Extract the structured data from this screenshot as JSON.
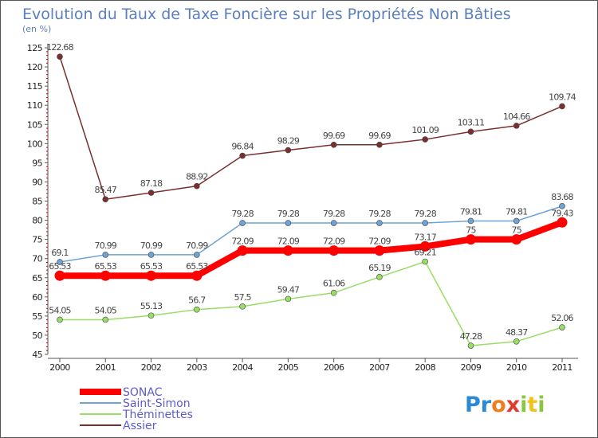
{
  "chart_data": {
    "type": "line",
    "title": "Evolution du Taux de Taxe Foncière sur les Propriétés Non Bâties",
    "subtitle": "(en %)",
    "xlabel": "",
    "ylabel": "(en %)",
    "categories": [
      "2000",
      "2001",
      "2002",
      "2003",
      "2004",
      "2005",
      "2006",
      "2007",
      "2008",
      "2009",
      "2010",
      "2011"
    ],
    "ylim": [
      45,
      125
    ],
    "yticks": [
      45,
      50,
      55,
      60,
      65,
      70,
      75,
      80,
      85,
      90,
      95,
      100,
      105,
      110,
      115,
      120,
      125
    ],
    "grid": false,
    "legend_position": "bottom-left",
    "series": [
      {
        "name": "SONAC",
        "color": "#ff0000",
        "values": [
          65.53,
          65.53,
          65.53,
          65.53,
          72.09,
          72.09,
          72.09,
          72.09,
          73.17,
          75,
          75,
          79.43
        ],
        "labels": [
          "65.53",
          "65.53",
          "65.53",
          "65.53",
          "72.09",
          "72.09",
          "72.09",
          "72.09",
          "73.17",
          "75",
          "75",
          "79.43"
        ]
      },
      {
        "name": "Saint-Simon",
        "color": "#6fa3d6",
        "values": [
          69.1,
          70.99,
          70.99,
          70.99,
          79.28,
          79.28,
          79.28,
          79.28,
          79.28,
          79.81,
          79.81,
          83.68
        ],
        "labels": [
          "69.1",
          "70.99",
          "70.99",
          "70.99",
          "79.28",
          "79.28",
          "79.28",
          "79.28",
          "79.28",
          "79.81",
          "79.81",
          "83.68"
        ]
      },
      {
        "name": "Théminettes",
        "color": "#99dd66",
        "values": [
          54.05,
          54.05,
          55.13,
          56.7,
          57.5,
          59.47,
          61.06,
          65.19,
          69.21,
          47.28,
          48.37,
          52.06
        ],
        "labels": [
          "54.05",
          "54.05",
          "55.13",
          "56.7",
          "57.5",
          "59.47",
          "61.06",
          "65.19",
          "69.21",
          "47.28",
          "48.37",
          "52.06"
        ]
      },
      {
        "name": "Assier",
        "color": "#7a2f2f",
        "values": [
          122.68,
          85.47,
          87.18,
          88.92,
          96.84,
          98.29,
          99.69,
          99.69,
          101.09,
          103.11,
          104.66,
          109.74
        ],
        "labels": [
          "122.68",
          "85.47",
          "87.18",
          "88.92",
          "96.84",
          "98.29",
          "99.69",
          "99.69",
          "101.09",
          "103.11",
          "104.66",
          "109.74"
        ]
      }
    ]
  },
  "brand": {
    "text": "Proxiti",
    "letters": [
      "P",
      "r",
      "o",
      "x",
      "i",
      "t",
      "i"
    ],
    "colors": [
      "#2a8ad6",
      "#2a8ad6",
      "#f07d1e",
      "#e23b2e",
      "#8cc63f",
      "#f2c21b",
      "#8cc63f"
    ]
  }
}
